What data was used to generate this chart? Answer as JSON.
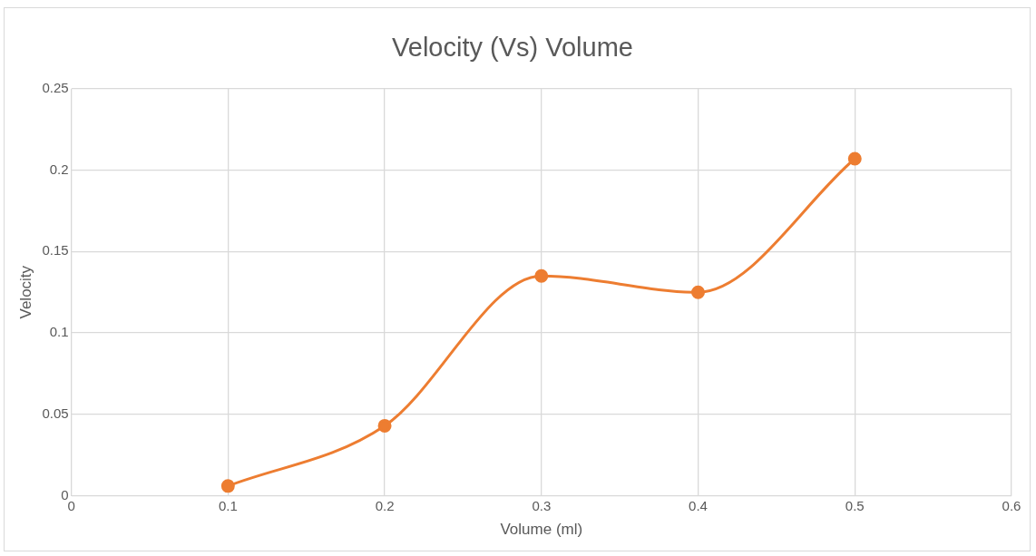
{
  "chart_data": {
    "type": "line",
    "title": "Velocity (Vs) Volume",
    "xlabel": "Volume (ml)",
    "ylabel": "Velocity",
    "x": [
      0.1,
      0.2,
      0.3,
      0.4,
      0.5
    ],
    "series": [
      {
        "color": "#ed7d31",
        "values": [
          0.006,
          0.043,
          0.135,
          0.125,
          0.207
        ]
      }
    ],
    "xlim": [
      0,
      0.6
    ],
    "xticks": [
      0,
      0.1,
      0.2,
      0.3,
      0.4,
      0.5,
      0.6
    ],
    "ylim": [
      0,
      0.25
    ],
    "yticks": [
      0,
      0.05,
      0.1,
      0.15,
      0.2,
      0.25
    ],
    "grid": true,
    "legend": false,
    "marker": "circle",
    "line_style": "solid"
  }
}
